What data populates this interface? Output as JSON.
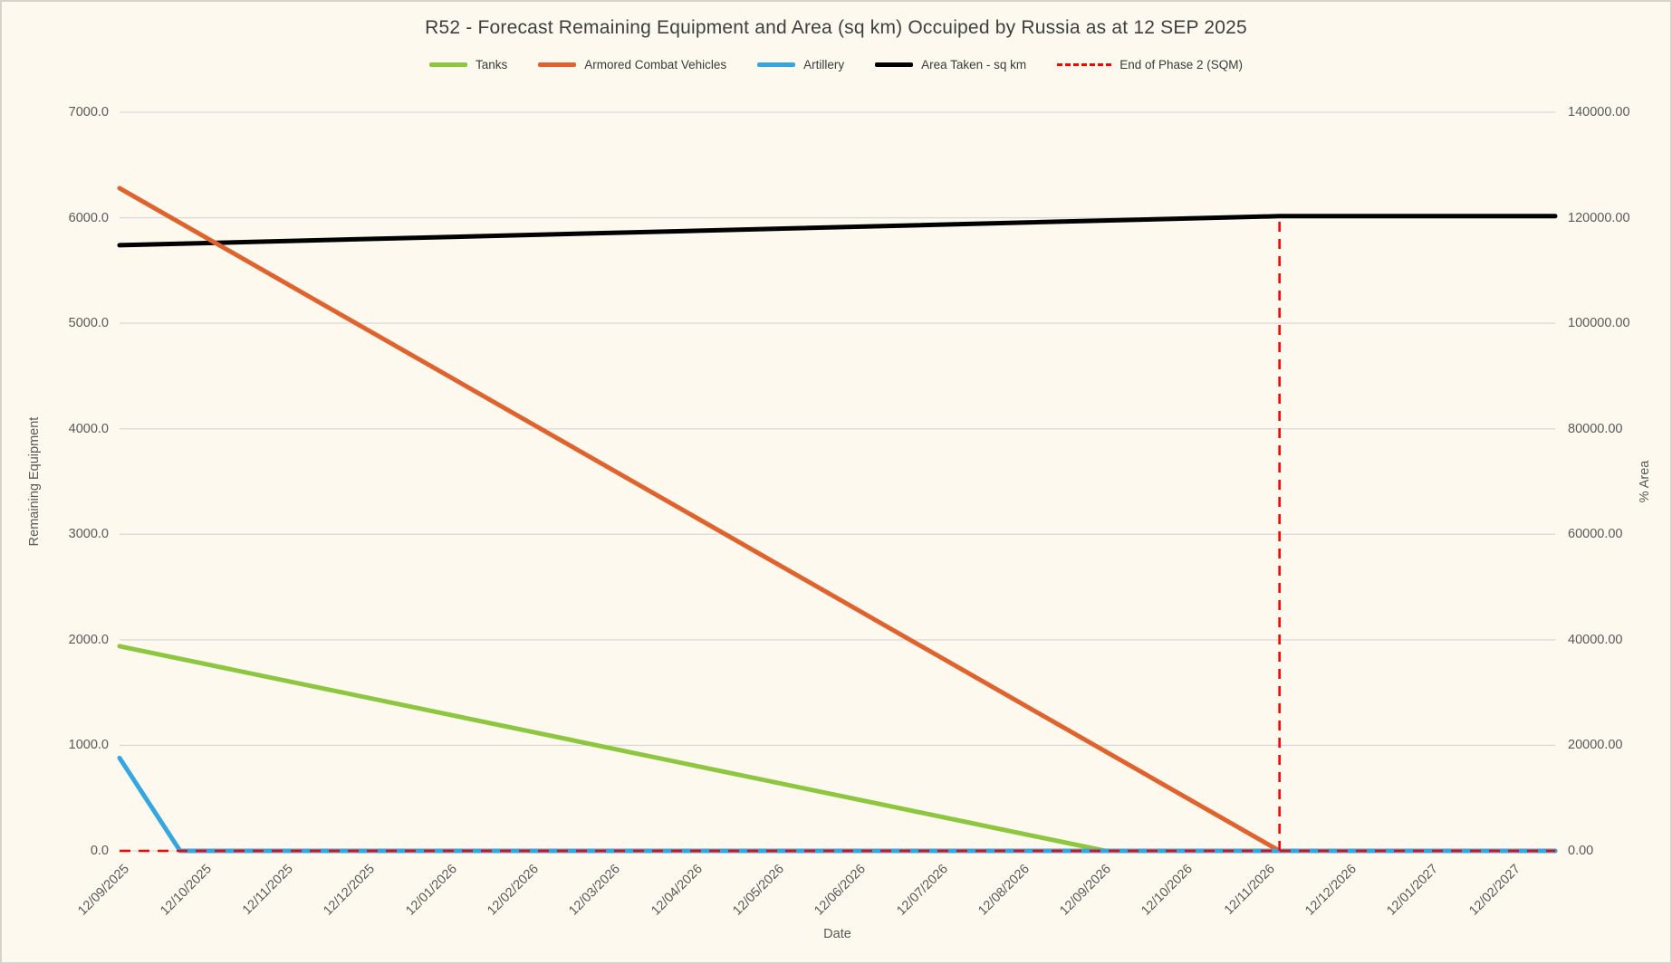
{
  "title": "R52 - Forecast Remaining Equipment and Area (sq km) Occuiped by Russia as at 12 SEP 2025",
  "chart_data": {
    "type": "line",
    "title": "R52 - Forecast Remaining Equipment and Area (sq km) Occuiped by Russia as at 12 SEP 2025",
    "legend_position": "top",
    "grid": "horizontal gridlines only",
    "x_axis": {
      "title": "Date",
      "labels": [
        "12/09/2025",
        "12/10/2025",
        "12/11/2025",
        "12/12/2025",
        "12/01/2026",
        "12/02/2026",
        "12/03/2026",
        "12/04/2026",
        "12/05/2026",
        "12/06/2026",
        "12/07/2026",
        "12/08/2026",
        "12/09/2026",
        "12/10/2026",
        "12/11/2026",
        "12/12/2026",
        "12/01/2027",
        "12/02/2027"
      ],
      "u_unit": "months since 12/09/2025 (one unit per labeled tick)",
      "u_max_plotted": 17.55
    },
    "y_left": {
      "title": "Remaining Equipment",
      "min": 0,
      "max": 7000,
      "tick_step": 1000,
      "tick_labels": [
        "0.0",
        "1000.0",
        "2000.0",
        "3000.0",
        "4000.0",
        "5000.0",
        "6000.0",
        "7000.0"
      ]
    },
    "y_right": {
      "title": "% Area",
      "min": 0,
      "max": 140000,
      "tick_step": 20000,
      "tick_labels": [
        "0.00",
        "20000.00",
        "40000.00",
        "60000.00",
        "80000.00",
        "100000.00",
        "120000.00",
        "140000.00"
      ]
    },
    "series": [
      {
        "name": "Area Taken - sq km",
        "axis": "right",
        "color": "#000000",
        "style": "solid",
        "points": [
          {
            "u": 0,
            "v": 114800
          },
          {
            "u": 14.18,
            "v": 120300
          },
          {
            "u": 17.55,
            "v": 120300
          }
        ]
      },
      {
        "name": "Tanks",
        "axis": "left",
        "color": "#8DC63F",
        "style": "solid",
        "points": [
          {
            "u": 0,
            "v": 1940
          },
          {
            "u": 12.05,
            "v": 0
          },
          {
            "u": 17.55,
            "v": 0
          }
        ]
      },
      {
        "name": "Armored Combat Vehicles",
        "axis": "left",
        "color": "#E0622D",
        "style": "solid",
        "points": [
          {
            "u": 0,
            "v": 6280
          },
          {
            "u": 14.18,
            "v": 0
          },
          {
            "u": 17.55,
            "v": 0
          }
        ]
      },
      {
        "name": "Artillery",
        "axis": "left",
        "color": "#35A7E0",
        "style": "solid",
        "points": [
          {
            "u": 0,
            "v": 880
          },
          {
            "u": 0.74,
            "v": 0
          },
          {
            "u": 17.55,
            "v": 0
          }
        ]
      }
    ],
    "phase2_marker": {
      "name": "End of Phase 2 (SQM)",
      "color": "#FF0000",
      "style": "dashed",
      "axis": "right",
      "baseline_v": 0,
      "baseline_u_range": [
        0,
        17.55
      ],
      "marker_u": 14.18,
      "marker_top_v": 120300
    },
    "legend": [
      {
        "label": "Tanks",
        "color": "#8DC63F",
        "style": "solid"
      },
      {
        "label": "Armored Combat Vehicles",
        "color": "#E0622D",
        "style": "solid"
      },
      {
        "label": "Artillery",
        "color": "#35A7E0",
        "style": "solid"
      },
      {
        "label": "Area Taken - sq km",
        "color": "#000000",
        "style": "solid"
      },
      {
        "label": "End of Phase 2 (SQM)",
        "color": "#FF0000",
        "style": "dashed"
      }
    ]
  },
  "colors": {
    "background": "#FDF9EE",
    "gridline": "#D9D9D9",
    "axis_text": "#595959",
    "title_text": "#3F3F3F",
    "border": "#D6D3CC"
  }
}
